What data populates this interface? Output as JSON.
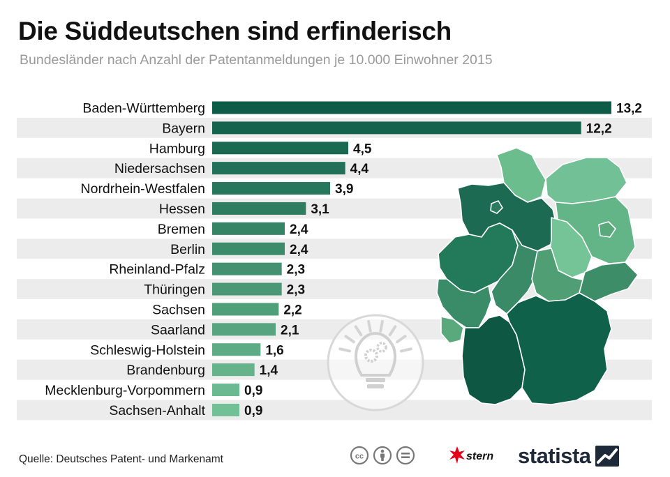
{
  "header": {
    "title": "Die Süddeutschen sind erfinderisch",
    "subtitle": "Bundesländer nach Anzahl der Patentanmeldungen je 10.000 Einwohner 2015"
  },
  "footer": {
    "source": "Quelle: Deutsches Patent- und Markenamt",
    "stern_label": "stern",
    "statista_label": "statista"
  },
  "colors": {
    "bar_dark": "#0d5c47",
    "bar_light": "#72c095",
    "row_stripe": "#ececec"
  },
  "icons": [
    "lightbulb-gear-icon",
    "cc-icon",
    "attribution-icon",
    "no-derivatives-icon",
    "stern-star-icon",
    "statista-icon"
  ],
  "chart_data": {
    "type": "bar",
    "orientation": "horizontal",
    "categories": [
      "Baden-Württemberg",
      "Bayern",
      "Hamburg",
      "Niedersachsen",
      "Nordrhein-Westfalen",
      "Hessen",
      "Bremen",
      "Berlin",
      "Rheinland-Pfalz",
      "Thüringen",
      "Sachsen",
      "Saarland",
      "Schleswig-Holstein",
      "Brandenburg",
      "Mecklenburg-Vorpommern",
      "Sachsen-Anhalt"
    ],
    "values": [
      13.2,
      12.2,
      4.5,
      4.4,
      3.9,
      3.1,
      2.4,
      2.4,
      2.3,
      2.3,
      2.2,
      2.1,
      1.6,
      1.4,
      0.9,
      0.9
    ],
    "value_labels": [
      "13,2",
      "12,2",
      "4,5",
      "4,4",
      "3,9",
      "3,1",
      "2,4",
      "2,4",
      "2,3",
      "2,3",
      "2,2",
      "2,1",
      "1,6",
      "1,4",
      "0,9",
      "0,9"
    ],
    "title": "Die Süddeutschen sind erfinderisch",
    "subtitle": "Bundesländer nach Anzahl der Patentanmeldungen je 10.000 Einwohner 2015",
    "xlabel": "",
    "ylabel": "",
    "xlim": [
      0,
      13.2
    ],
    "grid": false,
    "legend": "none"
  }
}
